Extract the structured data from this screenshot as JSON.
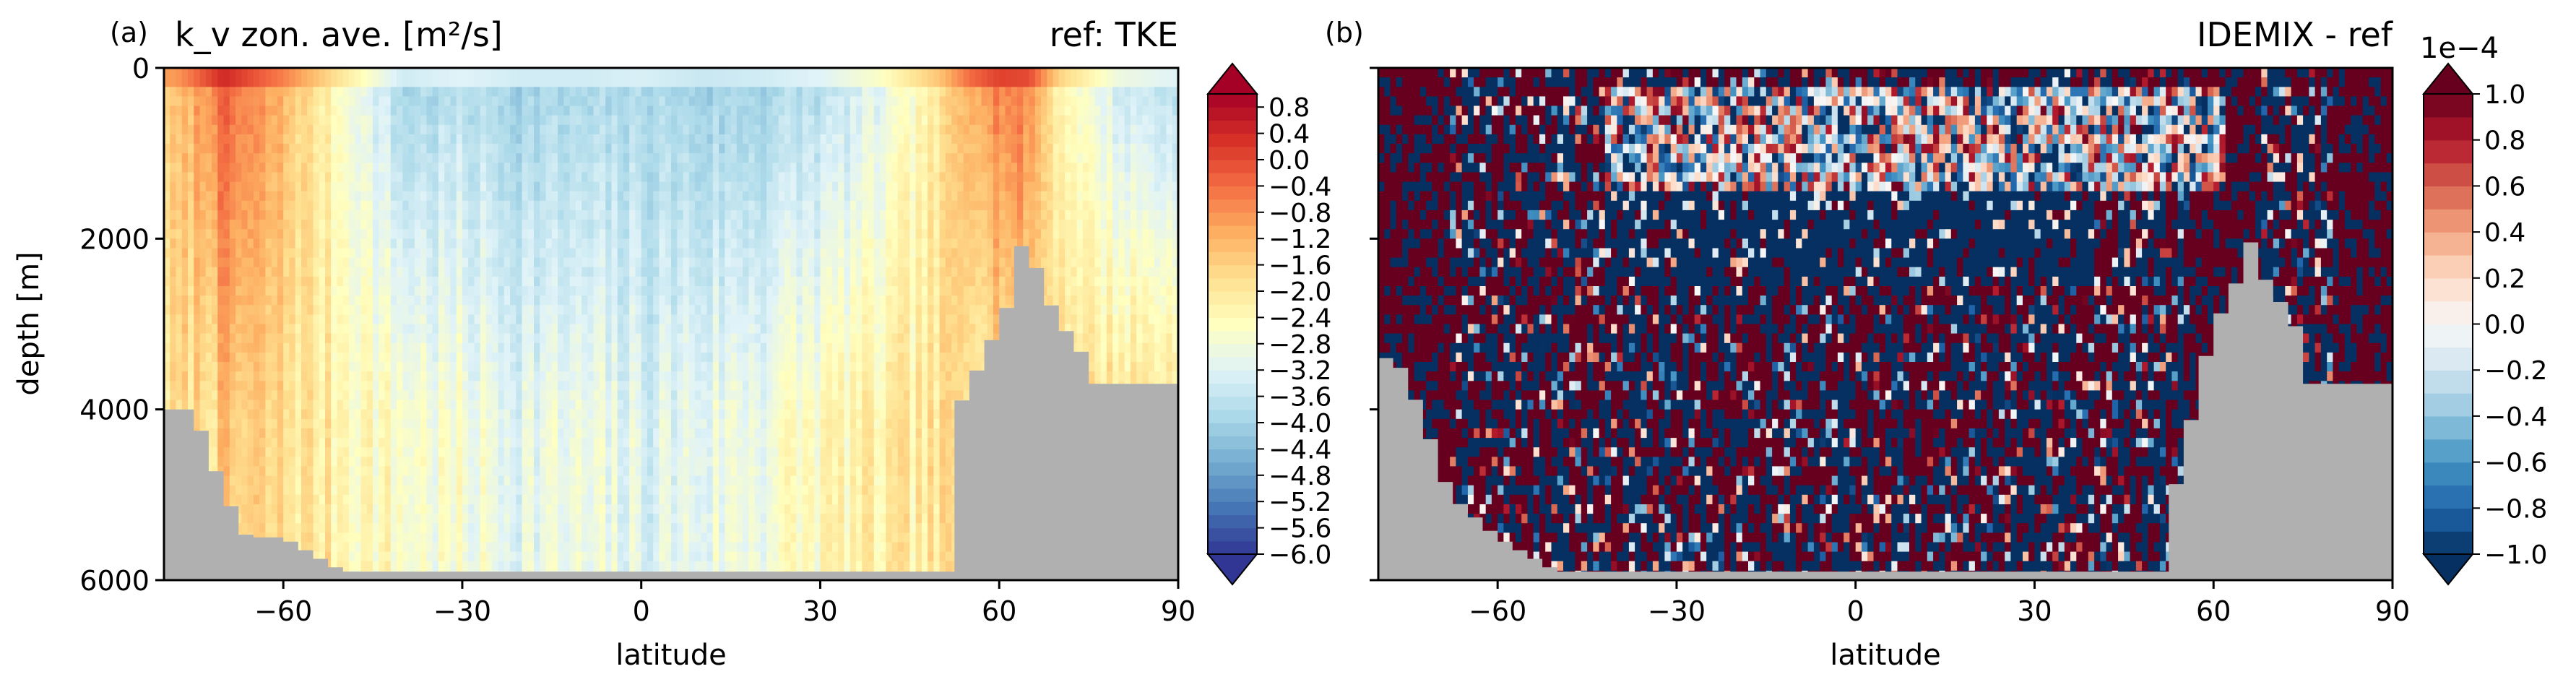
{
  "chart_data": [
    {
      "type": "heatmap",
      "panel_label": "(a)",
      "title_left": "k_v zon. ave. [m²/s]",
      "title_right": "ref: TKE",
      "xlabel": "latitude",
      "ylabel": "depth [m]",
      "xlim": [
        -80,
        90
      ],
      "ylim": [
        6000,
        0
      ],
      "xticks": [
        -60,
        -30,
        0,
        30,
        60,
        90
      ],
      "xtick_labels": [
        "−60",
        "−30",
        "0",
        "30",
        "60",
        "90"
      ],
      "yticks": [
        0,
        2000,
        4000,
        6000
      ],
      "ytick_labels": [
        "0",
        "2000",
        "4000",
        "6000"
      ],
      "colormap": "RdYlBu_r",
      "value_scale": "log10",
      "colorbar": {
        "range": [
          -6.0,
          1.0
        ],
        "extend": "both",
        "tick_values": [
          0.8,
          0.4,
          0.0,
          -0.4,
          -0.8,
          -1.2,
          -1.6,
          -2.0,
          -2.4,
          -2.8,
          -3.2,
          -3.6,
          -4.0,
          -4.4,
          -4.8,
          -5.2,
          -5.6,
          -6.0
        ],
        "tick_labels": [
          "0.8",
          "0.4",
          "0.0",
          "−0.4",
          "−0.8",
          "−1.2",
          "−1.6",
          "−2.0",
          "−2.4",
          "−2.8",
          "−3.2",
          "−3.6",
          "−4.0",
          "−4.4",
          "−4.8",
          "−5.2",
          "−5.6",
          "−6.0"
        ]
      },
      "field_profile": {
        "latitudes": [
          -78,
          -70,
          -60,
          -50,
          -40,
          -30,
          -20,
          -10,
          0,
          10,
          20,
          30,
          40,
          50,
          55,
          60,
          65,
          70,
          80,
          90
        ],
        "log10_kv_surface": [
          -1.5,
          -0.2,
          -1.2,
          -2.6,
          -4.0,
          -3.8,
          -4.0,
          -4.0,
          -3.9,
          -4.1,
          -4.0,
          -3.8,
          -3.2,
          -2.0,
          -1.0,
          -0.5,
          -0.6,
          -2.2,
          -3.5,
          -3.8
        ],
        "log10_kv_deep": [
          -2.0,
          -1.6,
          -1.8,
          -2.2,
          -2.6,
          -2.8,
          -3.0,
          -3.0,
          -3.2,
          -3.0,
          -2.8,
          -2.4,
          -2.2,
          -2.0,
          -1.8,
          -1.8,
          -1.9,
          -1.8,
          -1.8,
          -1.8
        ]
      },
      "bathymetry": {
        "latitudes": [
          -80,
          -77,
          -75,
          -72,
          -69,
          -66,
          -60,
          -50,
          -40,
          -30,
          -20,
          -10,
          0,
          10,
          20,
          30,
          40,
          52,
          53,
          58,
          62,
          64,
          66,
          70,
          73,
          76,
          80,
          85,
          90
        ],
        "depth_m": [
          4000,
          4000,
          4000,
          4600,
          5100,
          5500,
          5500,
          5900,
          5900,
          5900,
          5900,
          5900,
          5900,
          5900,
          5900,
          5900,
          5900,
          5900,
          4000,
          3300,
          2700,
          2000,
          2300,
          3000,
          3200,
          3700,
          3700,
          3700,
          3700
        ]
      }
    },
    {
      "type": "heatmap",
      "panel_label": "(b)",
      "title_right": "IDEMIX - ref",
      "xlabel": "latitude",
      "xlim": [
        -80,
        90
      ],
      "ylim": [
        6000,
        0
      ],
      "xticks": [
        -60,
        -30,
        0,
        30,
        60,
        90
      ],
      "xtick_labels": [
        "−60",
        "−30",
        "0",
        "30",
        "60",
        "90"
      ],
      "colormap": "RdBu_r",
      "colorbar": {
        "range": [
          -1.0,
          1.0
        ],
        "multiplier": "1e−4",
        "extend": "both",
        "tick_values": [
          1.0,
          0.8,
          0.6,
          0.4,
          0.2,
          0.0,
          -0.2,
          -0.4,
          -0.6,
          -0.8,
          -1.0
        ],
        "tick_labels": [
          "1.0",
          "0.8",
          "0.6",
          "0.4",
          "0.2",
          "0.0",
          "−0.2",
          "−0.4",
          "−0.6",
          "−0.8",
          "−1.0"
        ]
      },
      "bathymetry": {
        "latitudes": [
          -80,
          -77,
          -73,
          -68,
          -60,
          -50,
          -40,
          -30,
          -20,
          -10,
          0,
          10,
          20,
          30,
          40,
          52,
          53,
          56,
          60,
          63,
          66,
          70,
          73,
          76,
          80,
          85,
          90
        ],
        "depth_m": [
          3400,
          3400,
          4000,
          5000,
          5500,
          5900,
          5900,
          5900,
          5900,
          5900,
          5900,
          5900,
          5900,
          5900,
          5900,
          5900,
          5100,
          4200,
          3000,
          2700,
          2000,
          2700,
          2800,
          3700,
          3700,
          3700,
          3700
        ]
      }
    }
  ],
  "colors": {
    "land": "#b0b0b0",
    "axes": "#000000"
  }
}
